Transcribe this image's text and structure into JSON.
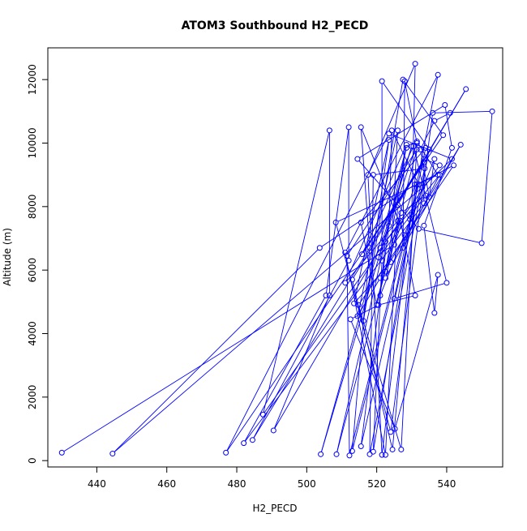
{
  "chart_data": {
    "type": "line",
    "title": "ATOM3 Southbound H2_PECD",
    "xlabel": "H2_PECD",
    "ylabel": "Altitude (m)",
    "xlim": [
      426,
      556
    ],
    "ylim": [
      -200,
      13000
    ],
    "xticks": [
      440,
      460,
      480,
      500,
      520,
      540
    ],
    "yticks": [
      0,
      2000,
      4000,
      6000,
      8000,
      10000,
      12000
    ],
    "grid": false,
    "legend": "none",
    "line_color": "#0000ff",
    "marker": "open-circle",
    "series": [
      {
        "values": [
          [
            430.0,
            250
          ],
          [
            525,
            6800
          ],
          [
            531,
            8700
          ],
          [
            503.7,
            6700
          ],
          [
            444.5,
            220
          ],
          [
            533,
            8600
          ],
          [
            541.5,
            9500
          ],
          [
            523.5,
            10300
          ],
          [
            476.9,
            250
          ],
          [
            533.5,
            9400
          ],
          [
            533.5,
            8100
          ],
          [
            482,
            550
          ],
          [
            505.5,
            5200
          ],
          [
            512,
            10500
          ],
          [
            512,
            6300
          ],
          [
            484.5,
            650
          ],
          [
            533.5,
            9500
          ],
          [
            538,
            9300
          ],
          [
            487.5,
            1450
          ],
          [
            506.5,
            10400
          ],
          [
            506.5,
            5200
          ],
          [
            490.5,
            950
          ],
          [
            521,
            6700
          ],
          [
            530,
            9900
          ],
          [
            504,
            200
          ],
          [
            528.5,
            9850
          ],
          [
            508.5,
            200
          ],
          [
            531.5,
            9800
          ],
          [
            511.5,
            6450
          ],
          [
            512.2,
            160
          ],
          [
            528,
            7100
          ],
          [
            515.5,
            10500
          ],
          [
            518,
            6700
          ],
          [
            513,
            300
          ],
          [
            532,
            8700
          ],
          [
            524.3,
            10400
          ],
          [
            523.5,
            7400
          ],
          [
            515.5,
            450
          ],
          [
            533.7,
            9200
          ],
          [
            519,
            9000
          ],
          [
            518,
            200
          ],
          [
            535,
            9800
          ],
          [
            521.5,
            11950
          ],
          [
            521.5,
            6300
          ],
          [
            519,
            280
          ],
          [
            530,
            7750
          ],
          [
            531,
            12500
          ],
          [
            517.5,
            9000
          ],
          [
            521.5,
            180
          ],
          [
            529.5,
            7600
          ],
          [
            537.5,
            12150
          ],
          [
            511,
            6550
          ],
          [
            522.5,
            180
          ],
          [
            526,
            8050
          ],
          [
            545.5,
            11700
          ],
          [
            513,
            5700
          ],
          [
            524.5,
            350
          ],
          [
            531.5,
            8700
          ],
          [
            542,
            9300
          ],
          [
            514.8,
            4900
          ],
          [
            527,
            350
          ],
          [
            531.5,
            10050
          ],
          [
            537.5,
            9000
          ],
          [
            508.3,
            7500
          ],
          [
            524,
            900
          ],
          [
            536,
            10950
          ],
          [
            553,
            11000
          ],
          [
            550,
            6850
          ],
          [
            532,
            7300
          ],
          [
            514.5,
            9500
          ],
          [
            539.5,
            11200
          ],
          [
            541.5,
            9850
          ],
          [
            533.5,
            7400
          ],
          [
            536.5,
            4650
          ],
          [
            537.5,
            5850
          ],
          [
            525.2,
            1000
          ],
          [
            512.5,
            4450
          ],
          [
            520.5,
            4900
          ],
          [
            531,
            5200
          ],
          [
            526.8,
            7550
          ],
          [
            522.5,
            5950
          ],
          [
            528.5,
            9950
          ],
          [
            511,
            5600
          ],
          [
            526,
            7550
          ],
          [
            520,
            4900
          ],
          [
            515.5,
            7500
          ],
          [
            534,
            9850
          ],
          [
            525,
            5100
          ],
          [
            540,
            5600
          ],
          [
            530.5,
            9900
          ],
          [
            515.8,
            6500
          ],
          [
            539,
            10250
          ],
          [
            527.5,
            12000
          ],
          [
            516.2,
            4400
          ],
          [
            523.5,
            10100
          ],
          [
            513.5,
            4950
          ],
          [
            524,
            6250
          ],
          [
            526,
            10400
          ],
          [
            514.5,
            4550
          ],
          [
            521,
            5750
          ],
          [
            544,
            9950
          ],
          [
            527.5,
            6700
          ],
          [
            528,
            11950
          ],
          [
            531.5,
            10000
          ],
          [
            520.5,
            6400
          ],
          [
            534,
            8350
          ],
          [
            527,
            7800
          ],
          [
            522.5,
            5750
          ],
          [
            538,
            9000
          ],
          [
            522.5,
            6900
          ],
          [
            521,
            5200
          ],
          [
            536.5,
            9500
          ],
          [
            535,
            8300
          ],
          [
            532.5,
            9800
          ],
          [
            536.5,
            10700
          ],
          [
            541,
            10950
          ]
        ]
      }
    ]
  }
}
